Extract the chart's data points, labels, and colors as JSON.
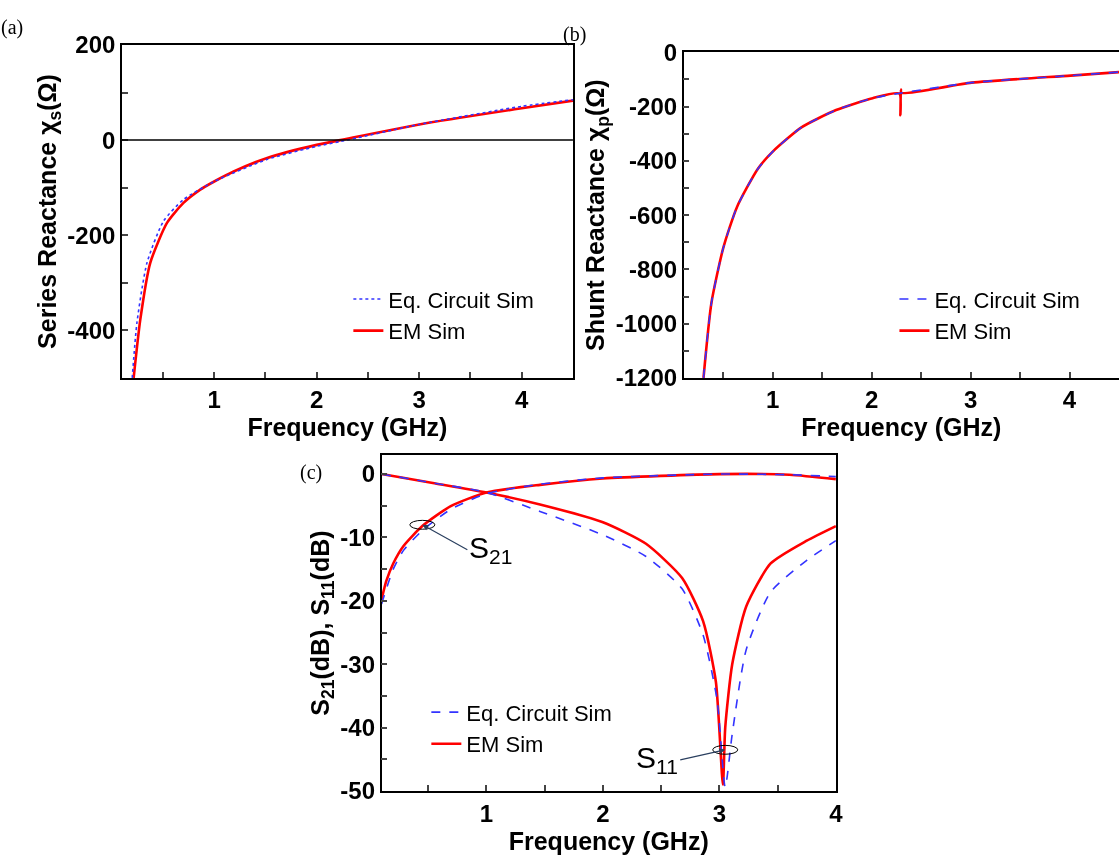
{
  "chart_data": [
    {
      "type": "line",
      "xlabel": "Frequency (GHz)",
      "ylabel": "Series Reactance χ$_{s}$(Ω)",
      "annotations": [
        "(a)"
      ],
      "xlim": [
        0.1,
        4.5
      ],
      "ylim": [
        -500,
        200
      ],
      "xticks": [
        {
          "value": 0.5,
          "label": null
        },
        1,
        {
          "value": 1.5,
          "label": null
        },
        2,
        {
          "value": 2.5,
          "label": null
        },
        3,
        {
          "value": 3.5,
          "label": null
        },
        4
      ],
      "yticks": [
        -400,
        {
          "value": -300,
          "label": null
        },
        -200,
        {
          "value": -100,
          "label": null
        },
        0,
        {
          "value": 100,
          "label": null
        },
        200
      ],
      "ref_lines": [
        {
          "axis": "y",
          "value": 0,
          "color": "#000000"
        }
      ],
      "legend": "bottom right",
      "series": [
        {
          "name": "Eq. Circuit Sim",
          "color": "#3333ff",
          "line_style": "dotted",
          "x": [
            0.2,
            0.246,
            0.344,
            0.506,
            0.7,
            1.0,
            1.51,
            2.0,
            2.23,
            3.0,
            4.0,
            4.5
          ],
          "values": [
            -500,
            -384,
            -258,
            -170,
            -125,
            -87,
            -41,
            -13,
            -3,
            33,
            71,
            85
          ]
        },
        {
          "name": "EM Sim",
          "color": "#ff0000",
          "line_style": "solid",
          "x": [
            0.214,
            0.279,
            0.376,
            0.539,
            0.7,
            0.864,
            1.0,
            1.19,
            1.51,
            2.0,
            2.23,
            3.0,
            4.0,
            4.5
          ],
          "values": [
            -500,
            -377,
            -258,
            -174,
            -132,
            -104,
            -87,
            -66,
            -38,
            -10,
            0,
            33,
            67,
            83
          ]
        }
      ]
    },
    {
      "type": "line",
      "xlabel": "Frequency (GHz)",
      "ylabel": "Shunt Reactance χ$_{p}$(Ω)",
      "annotations": [
        "(b)"
      ],
      "xlim": [
        0.1,
        4.5
      ],
      "ylim": [
        -1200,
        0
      ],
      "xticks": [
        {
          "value": 0.5,
          "label": null
        },
        1,
        {
          "value": 1.5,
          "label": null
        },
        2,
        {
          "value": 2.5,
          "label": null
        },
        3,
        {
          "value": 3.5,
          "label": null
        },
        4
      ],
      "yticks": [
        -1200,
        {
          "value": -1100,
          "label": null
        },
        -1000,
        {
          "value": -900,
          "label": null
        },
        -800,
        {
          "value": -700,
          "label": null
        },
        -600,
        {
          "value": -500,
          "label": null
        },
        -400,
        {
          "value": -300,
          "label": null
        },
        -200,
        {
          "value": -100,
          "label": null
        },
        0
      ],
      "legend": "bottom right",
      "series": [
        {
          "name": "Eq. Circuit Sim",
          "color": "#3333ff",
          "line_style": "dashed",
          "x": [
            0.3,
            0.38,
            0.5,
            0.64,
            0.85,
            1.0,
            1.29,
            1.64,
            2.01,
            2.3,
            3.01,
            4.01,
            4.5
          ],
          "values": [
            -1200,
            -924,
            -721,
            -569,
            -429,
            -366,
            -277,
            -213,
            -169,
            -150,
            -112,
            -86,
            -73
          ]
        },
        {
          "name": "EM Sim",
          "color": "#ff0000",
          "line_style": "solid",
          "x": [
            0.3,
            0.38,
            0.5,
            0.64,
            0.85,
            1.0,
            1.29,
            1.64,
            2.01,
            2.28,
            2.29,
            2.295,
            2.3,
            3.01,
            4.01,
            4.5
          ],
          "values": [
            -1200,
            -924,
            -721,
            -569,
            -429,
            -366,
            -277,
            -213,
            -169,
            -152,
            -232,
            -137,
            -150,
            -112,
            -86,
            -73
          ]
        }
      ]
    },
    {
      "type": "line",
      "xlabel": "Frequency (GHz)",
      "ylabel": "S$_{21}$(dB), S$_{11}$(dB)",
      "annotations": [
        "(c)",
        {
          "text": "S$_{21}$",
          "x": 0.45,
          "y": -8
        },
        {
          "text": "S$_{11}$",
          "x": 3.05,
          "y": -43.5
        }
      ],
      "xlim": [
        0.1,
        4
      ],
      "ylim": [
        -50,
        3
      ],
      "xticks": [
        {
          "value": 0.5,
          "label": null
        },
        1,
        {
          "value": 1.5,
          "label": null
        },
        2,
        {
          "value": 2.5,
          "label": null
        },
        3,
        {
          "value": 3.5,
          "label": null
        },
        4
      ],
      "yticks": [
        -50,
        {
          "value": -45,
          "label": null
        },
        -40,
        {
          "value": -35,
          "label": null
        },
        -30,
        {
          "value": -25,
          "label": null
        },
        -20,
        {
          "value": -15,
          "label": null
        },
        -10,
        {
          "value": -5,
          "label": null
        },
        0
      ],
      "legend": "bottom left",
      "series": [
        {
          "name": "Eq. Circuit Sim",
          "color": "#3333ff",
          "line_style": "dashed",
          "x": [
            0.1,
            0.2,
            0.29,
            0.45,
            0.69,
            1.0,
            1.46,
            2.0,
            3.0,
            3.6,
            4.0
          ],
          "values": [
            -20.5,
            -15,
            -12,
            -8.9,
            -5.6,
            -3.1,
            -1.6,
            -0.6,
            0,
            -0.1,
            -0.4
          ]
        },
        {
          "name": "EM Sim",
          "color": "#ff0000",
          "line_style": "solid",
          "x": [
            0.1,
            0.14,
            0.2,
            0.29,
            0.45,
            0.69,
            1.0,
            1.46,
            2.0,
            3.0,
            3.6,
            4.0
          ],
          "values": [
            -19.8,
            -16.9,
            -14.1,
            -11.3,
            -8.2,
            -5.1,
            -2.9,
            -1.7,
            -0.7,
            0,
            -0.1,
            -0.8
          ]
        },
        {
          "color": "#3333ff",
          "line_style": "dashed",
          "x": [
            0.1,
            0.54,
            1.0,
            1.46,
            2.0,
            2.37,
            2.68,
            2.86,
            2.98,
            3.05,
            3.11,
            3.23,
            3.44,
            3.75,
            4.0
          ],
          "values": [
            0,
            -1.4,
            -2.9,
            -5.9,
            -9.6,
            -13,
            -18.1,
            -25.4,
            -35.6,
            -49.4,
            -41,
            -27.7,
            -18.6,
            -13.6,
            -10.5
          ]
        },
        {
          "color": "#ff0000",
          "line_style": "solid",
          "x": [
            0.1,
            0.54,
            1.0,
            1.46,
            2.0,
            2.37,
            2.68,
            2.86,
            2.97,
            3.03,
            3.05,
            3.11,
            3.23,
            3.44,
            3.75,
            4.0
          ],
          "values": [
            0,
            -1.4,
            -2.9,
            -4.8,
            -7.6,
            -11,
            -16.4,
            -23.2,
            -32.8,
            -49,
            -40,
            -30,
            -20.9,
            -14.1,
            -10.5,
            -8.2
          ]
        }
      ]
    }
  ]
}
